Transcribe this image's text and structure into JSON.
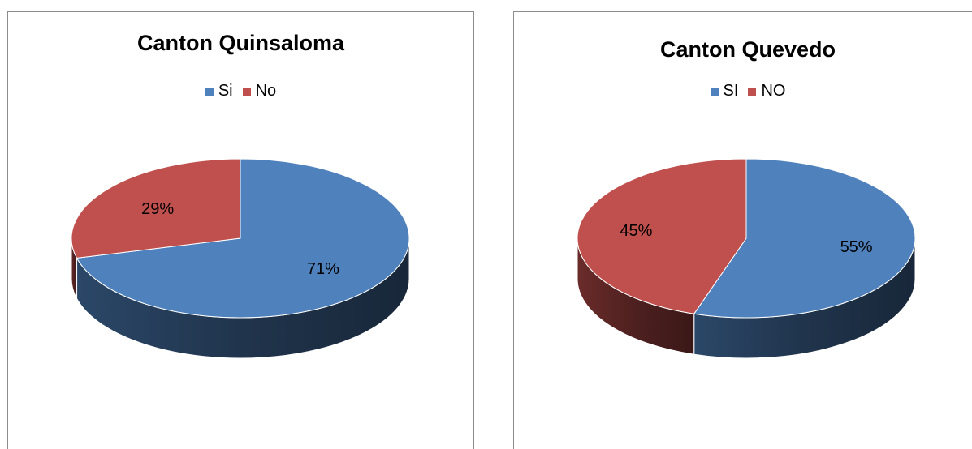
{
  "chart_data": [
    {
      "type": "pie",
      "title": "Canton Quinsaloma",
      "legend_placement": "top",
      "categories": [
        "Si",
        "No"
      ],
      "values": [
        71,
        29
      ],
      "labels": [
        "71%",
        "29%"
      ],
      "colors": [
        "#4F81BD",
        "#C0504D"
      ]
    },
    {
      "type": "pie",
      "title": "Canton Quevedo",
      "legend_placement": "top",
      "categories": [
        "SI",
        "NO"
      ],
      "values": [
        55,
        45
      ],
      "labels": [
        "55%",
        "45%"
      ],
      "colors": [
        "#4F81BD",
        "#C0504D"
      ]
    }
  ]
}
